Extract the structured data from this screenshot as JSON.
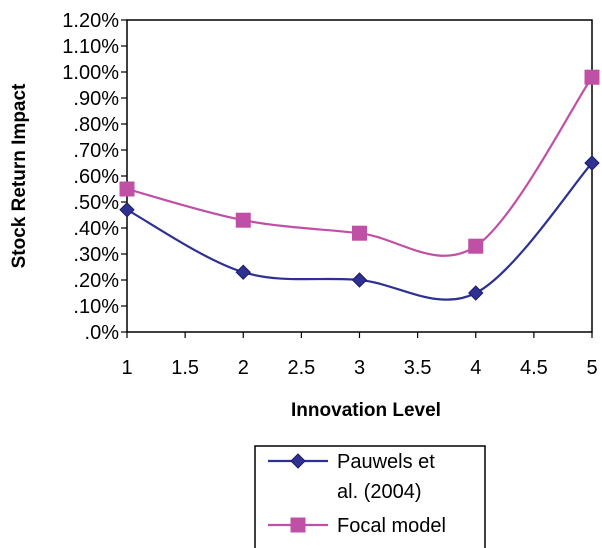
{
  "chart_data": {
    "type": "line",
    "title": "",
    "xlabel": "Innovation Level",
    "ylabel": "Stock Return Impact",
    "xlim": [
      1,
      5
    ],
    "ylim": [
      0,
      1.2
    ],
    "x_ticks": [
      "1",
      "1.5",
      "2",
      "2.5",
      "3",
      "3.5",
      "4",
      "4.5",
      "5"
    ],
    "y_ticks": [
      ".0%",
      ".10%",
      ".20%",
      ".30%",
      ".40%",
      ".50%",
      ".60%",
      ".70%",
      ".80%",
      ".90%",
      "1.00%",
      "1.10%",
      "1.20%"
    ],
    "grid": false,
    "legend_position": "below",
    "x": [
      1,
      2,
      3,
      4,
      5
    ],
    "series": [
      {
        "name": "Pauwels et al. (2004)",
        "legend_lines": [
          "Pauwels et",
          "al. (2004)"
        ],
        "values": [
          0.47,
          0.23,
          0.2,
          0.15,
          0.65
        ],
        "color": "#2e3192",
        "marker": "diamond"
      },
      {
        "name": "Focal model",
        "legend_lines": [
          "Focal model"
        ],
        "values": [
          0.55,
          0.43,
          0.38,
          0.33,
          0.98
        ],
        "color": "#c04fa6",
        "marker": "square"
      }
    ]
  }
}
